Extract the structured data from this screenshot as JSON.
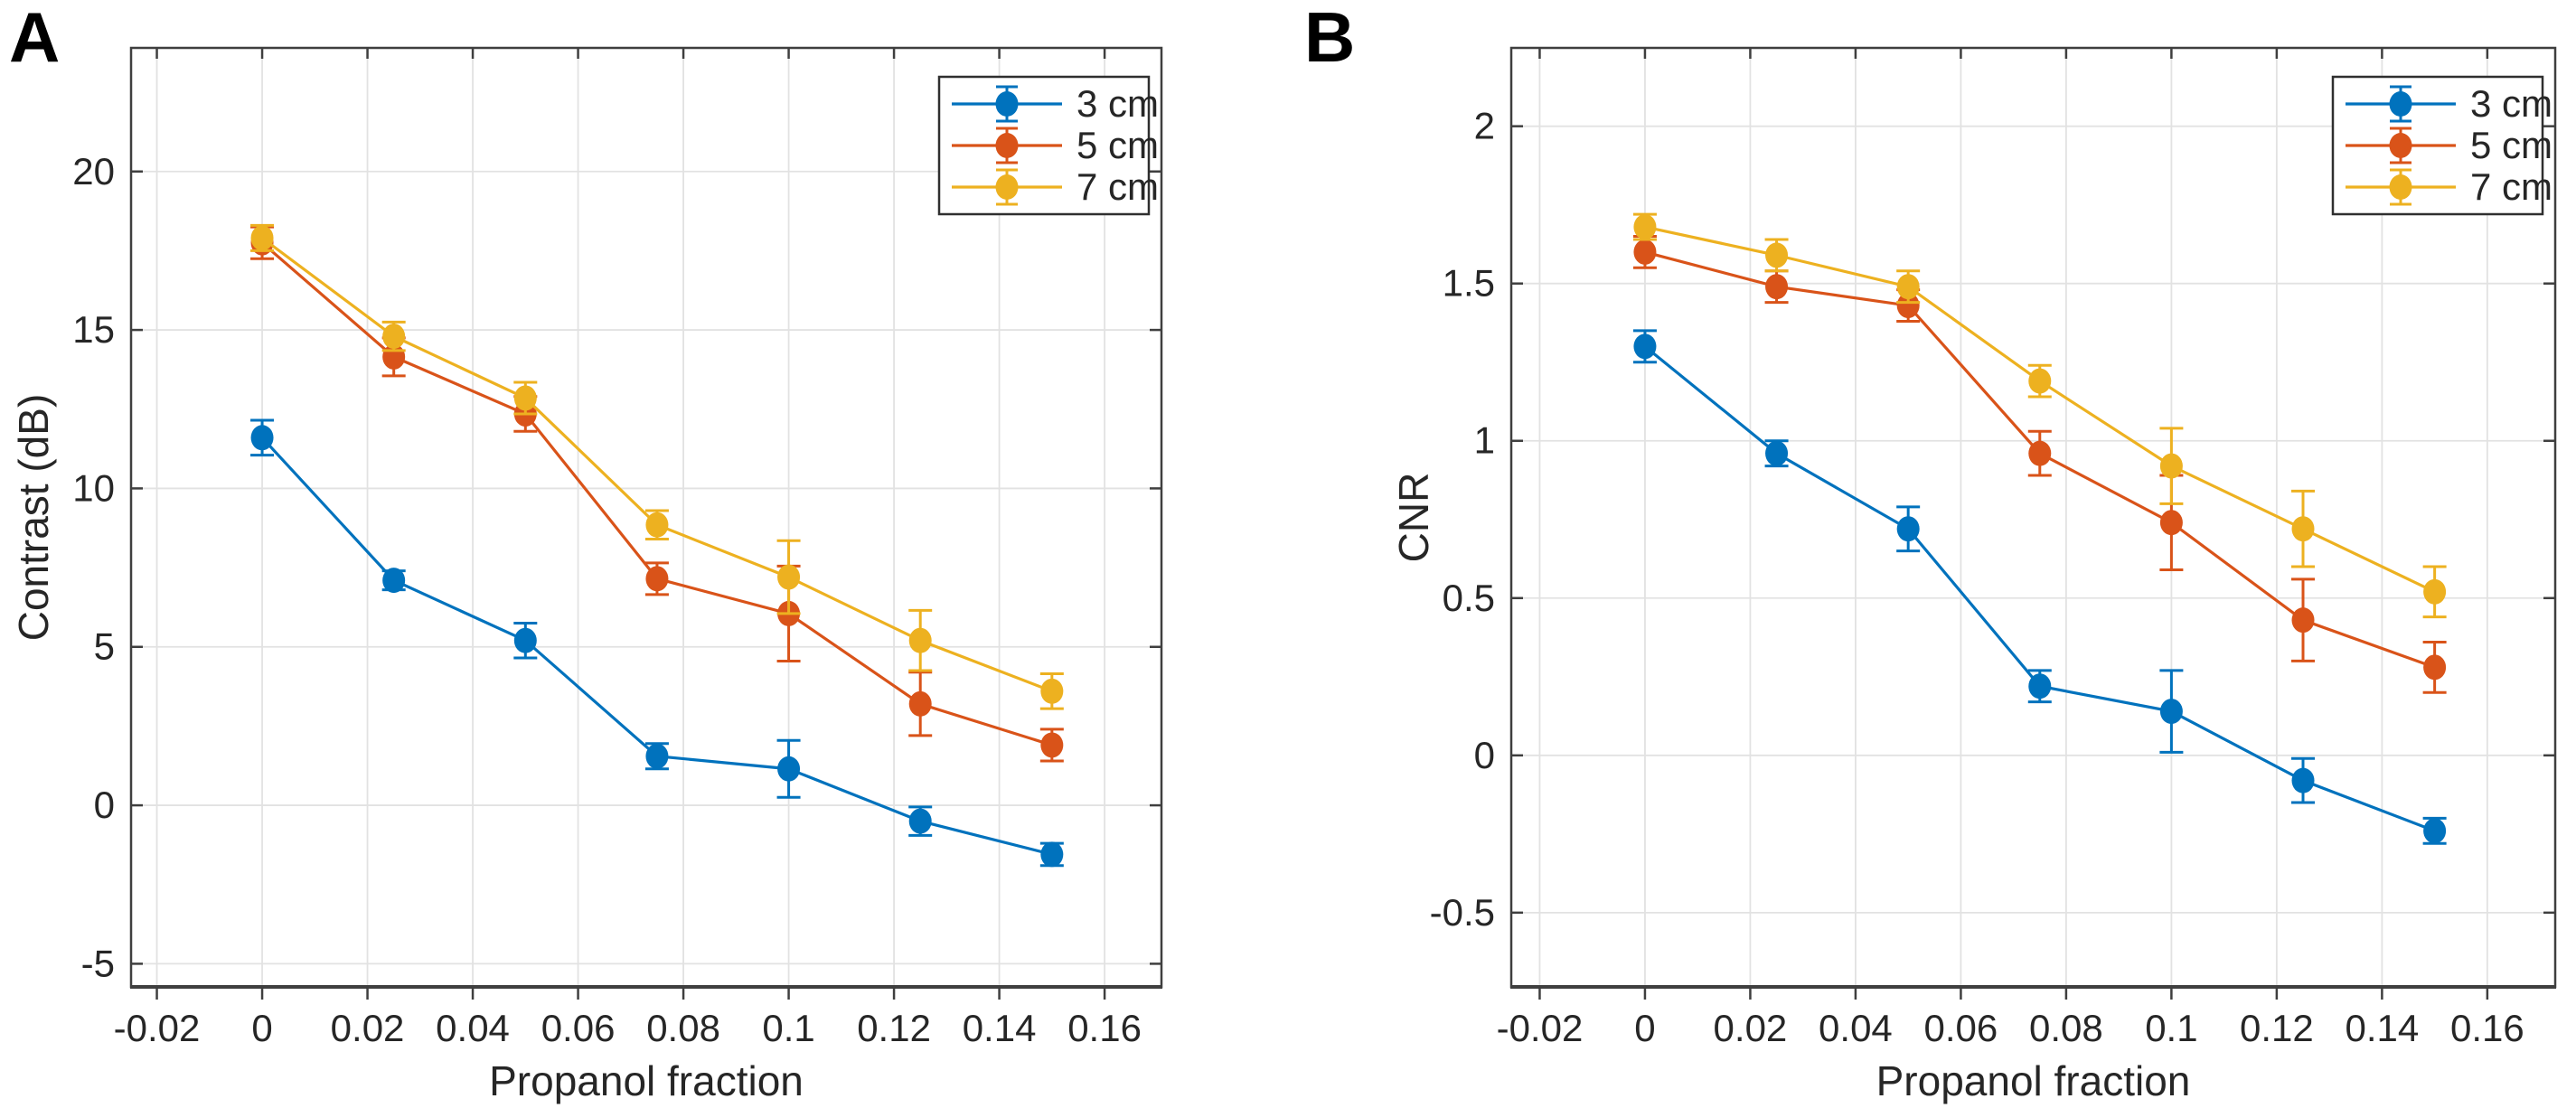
{
  "figure": {
    "background": "#ffffff"
  },
  "colors": {
    "blue": "#0072BD",
    "orange": "#D95319",
    "yellow": "#EDB120",
    "axis": "#3f3f3f",
    "grid": "#e2e2e2",
    "text": "#262626",
    "legend_border": "#2f2f2f",
    "legend_background": "#ffffff"
  },
  "chart_data": [
    {
      "type": "line",
      "panel_label": "A",
      "title": "",
      "xlabel": "Propanol fraction",
      "ylabel": "Contrast (dB)",
      "grid": true,
      "legend_position": "top-right",
      "x": [
        0,
        0.025,
        0.05,
        0.075,
        0.1,
        0.125,
        0.15
      ],
      "xlim": [
        -0.0249,
        0.1708
      ],
      "ylim": [
        -5.73,
        23.9
      ],
      "xticks": [
        -0.02,
        0,
        0.02,
        0.04,
        0.06,
        0.08,
        0.1,
        0.12,
        0.14,
        0.16
      ],
      "xtick_labels": [
        "-0.02",
        "0",
        "0.02",
        "0.04",
        "0.06",
        "0.08",
        "0.1",
        "0.12",
        "0.14",
        "0.16"
      ],
      "yticks": [
        -5,
        0,
        5,
        10,
        15,
        20
      ],
      "ytick_labels": [
        "-5",
        "0",
        "5",
        "10",
        "15",
        "20"
      ],
      "series": [
        {
          "name": "3 cm",
          "color_key": "blue",
          "values": [
            11.6,
            7.1,
            5.2,
            1.55,
            1.15,
            -0.5,
            -1.55
          ],
          "errors": [
            0.55,
            0.3,
            0.55,
            0.4,
            0.9,
            0.45,
            0.35
          ]
        },
        {
          "name": "5 cm",
          "color_key": "orange",
          "values": [
            17.75,
            14.15,
            12.35,
            7.15,
            6.05,
            3.2,
            1.9
          ],
          "errors": [
            0.5,
            0.6,
            0.55,
            0.5,
            1.5,
            1.0,
            0.5
          ]
        },
        {
          "name": "7 cm",
          "color_key": "yellow",
          "values": [
            17.9,
            14.8,
            12.85,
            8.85,
            7.2,
            5.2,
            3.6
          ],
          "errors": [
            0.4,
            0.45,
            0.5,
            0.45,
            1.15,
            0.95,
            0.55
          ]
        }
      ]
    },
    {
      "type": "line",
      "panel_label": "B",
      "title": "",
      "xlabel": "Propanol fraction",
      "ylabel": "CNR",
      "grid": true,
      "legend_position": "top-right",
      "x": [
        0,
        0.025,
        0.05,
        0.075,
        0.1,
        0.125,
        0.15
      ],
      "xlim": [
        -0.0254,
        0.1729
      ],
      "ylim": [
        -0.736,
        2.249
      ],
      "xticks": [
        -0.02,
        0,
        0.02,
        0.04,
        0.06,
        0.08,
        0.1,
        0.12,
        0.14,
        0.16
      ],
      "xtick_labels": [
        "-0.02",
        "0",
        "0.02",
        "0.04",
        "0.06",
        "0.08",
        "0.1",
        "0.12",
        "0.14",
        "0.16"
      ],
      "yticks": [
        -0.5,
        0,
        0.5,
        1,
        1.5,
        2
      ],
      "ytick_labels": [
        "-0.5",
        "0",
        "0.5",
        "1",
        "1.5",
        "2"
      ],
      "series": [
        {
          "name": "3 cm",
          "color_key": "blue",
          "values": [
            1.3,
            0.96,
            0.72,
            0.22,
            0.14,
            -0.08,
            -0.24
          ],
          "errors": [
            0.05,
            0.04,
            0.07,
            0.05,
            0.13,
            0.07,
            0.04
          ]
        },
        {
          "name": "5 cm",
          "color_key": "orange",
          "values": [
            1.6,
            1.49,
            1.43,
            0.96,
            0.74,
            0.43,
            0.28
          ],
          "errors": [
            0.05,
            0.05,
            0.05,
            0.07,
            0.15,
            0.13,
            0.08
          ]
        },
        {
          "name": "7 cm",
          "color_key": "yellow",
          "values": [
            1.68,
            1.59,
            1.49,
            1.19,
            0.92,
            0.72,
            0.52
          ],
          "errors": [
            0.04,
            0.05,
            0.05,
            0.05,
            0.12,
            0.12,
            0.08
          ]
        }
      ]
    }
  ]
}
